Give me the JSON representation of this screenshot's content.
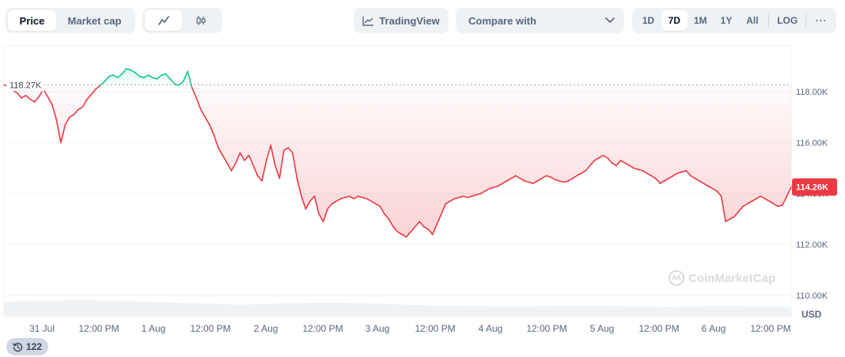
{
  "toolbar": {
    "price_label": "Price",
    "market_cap_label": "Market cap",
    "line_icon": "line-chart-icon",
    "candle_icon": "candlestick-icon",
    "tradingview_label": "TradingView",
    "tradingview_icon": "chart-line-icon",
    "compare_label": "Compare with",
    "ranges": [
      "1D",
      "7D",
      "1M",
      "1Y",
      "All"
    ],
    "active_range": "7D",
    "log_label": "LOG",
    "more_label": "···"
  },
  "chart_data": {
    "type": "line",
    "ylim": [
      109200,
      119800
    ],
    "yticks": [
      110000,
      112000,
      114000,
      116000,
      118000
    ],
    "ytick_labels": [
      "110.00K",
      "112.00K",
      "114.00K",
      "116.00K",
      "118.00K"
    ],
    "x_ticks": [
      "31 Jul",
      "12:00 PM",
      "1 Aug",
      "12:00 PM",
      "2 Aug",
      "12:00 PM",
      "3 Aug",
      "12:00 PM",
      "4 Aug",
      "12:00 PM",
      "5 Aug",
      "12:00 PM",
      "6 Aug",
      "12:00 PM"
    ],
    "reference_value": 118270,
    "reference_label": "118.27K",
    "current_value": 114260,
    "current_label": "114.26K",
    "unit_label": "USD",
    "watermark": "CoinMarketCap",
    "colors": {
      "up": "#16c784",
      "down": "#ea3943",
      "grid": "#eff2f5",
      "axis_text": "#58667e",
      "volume": "#eff2f5"
    },
    "series": [
      {
        "values": [
          118270,
          118200,
          118050,
          117950,
          117750,
          117850,
          117700,
          117600,
          117800,
          118100,
          117800,
          117500,
          116900,
          116000,
          116700,
          117000,
          117100,
          117300,
          117400,
          117700,
          117900,
          118100,
          118250,
          118400,
          118600,
          118650,
          118550,
          118700,
          118900,
          118850,
          118750,
          118600,
          118550,
          118650,
          118550,
          118500,
          118650,
          118700,
          118500,
          118300,
          118250,
          118400,
          118800,
          118150,
          117750,
          117300,
          117000,
          116700,
          116300,
          115800,
          115500,
          115200,
          114900,
          115200,
          115600,
          115300,
          115500,
          115100,
          114700,
          114500,
          115300,
          115900,
          115100,
          114600,
          115700,
          115800,
          115600,
          114600,
          113900,
          113400,
          113700,
          113900,
          113200,
          112900,
          113400,
          113600,
          113700,
          113800,
          113850,
          113900,
          113800,
          113900,
          113850,
          113800,
          113700,
          113600,
          113500,
          113200,
          113000,
          112700,
          112500,
          112400,
          112300,
          112500,
          112700,
          112900,
          112700,
          112600,
          112400,
          112800,
          113200,
          113600,
          113700,
          113800,
          113850,
          113900,
          113850,
          113900,
          113950,
          114000,
          114100,
          114200,
          114250,
          114300,
          114400,
          114500,
          114600,
          114700,
          114600,
          114500,
          114450,
          114400,
          114500,
          114600,
          114700,
          114650,
          114550,
          114500,
          114450,
          114500,
          114600,
          114700,
          114800,
          114900,
          115100,
          115300,
          115400,
          115500,
          115400,
          115200,
          115100,
          115300,
          115200,
          115100,
          115000,
          114950,
          114900,
          114800,
          114700,
          114600,
          114400,
          114500,
          114600,
          114700,
          114800,
          114850,
          114900,
          114700,
          114600,
          114500,
          114400,
          114300,
          114200,
          114100,
          113900,
          112900,
          113000,
          113100,
          113300,
          113500,
          113600,
          113700,
          113800,
          113900,
          113800,
          113700,
          113600,
          113500,
          113550,
          113900,
          114260
        ]
      }
    ],
    "volume": [
      0.3,
      0.3,
      0.31,
      0.31,
      0.32,
      0.32,
      0.33,
      0.33,
      0.33,
      0.34,
      0.34,
      0.34,
      0.33,
      0.33,
      0.32,
      0.32,
      0.31,
      0.31,
      0.3,
      0.3,
      0.29,
      0.29,
      0.28,
      0.28,
      0.27,
      0.27,
      0.26,
      0.26,
      0.25,
      0.25,
      0.24,
      0.24,
      0.24,
      0.25,
      0.25,
      0.26,
      0.26,
      0.27,
      0.27,
      0.27,
      0.28,
      0.28,
      0.28,
      0.28,
      0.28,
      0.28,
      0.27,
      0.27,
      0.26,
      0.26,
      0.25,
      0.25,
      0.24,
      0.24,
      0.23,
      0.23,
      0.22,
      0.22,
      0.22,
      0.22,
      0.21,
      0.21,
      0.21,
      0.21,
      0.2,
      0.2,
      0.2,
      0.2,
      0.2,
      0.2,
      0.21,
      0.21,
      0.21,
      0.22,
      0.22,
      0.22,
      0.22,
      0.22,
      0.22,
      0.21,
      0.21,
      0.21,
      0.2,
      0.2,
      0.2,
      0.2,
      0.19,
      0.19,
      0.19,
      0.2,
      0.2,
      0.2,
      0.21,
      0.21,
      0.21,
      0.21,
      0.21,
      0.21,
      0.2,
      0.2,
      0.2,
      0.2,
      0.19,
      0.19
    ]
  },
  "footer": {
    "history_icon": "history-icon",
    "history_count": "122"
  }
}
